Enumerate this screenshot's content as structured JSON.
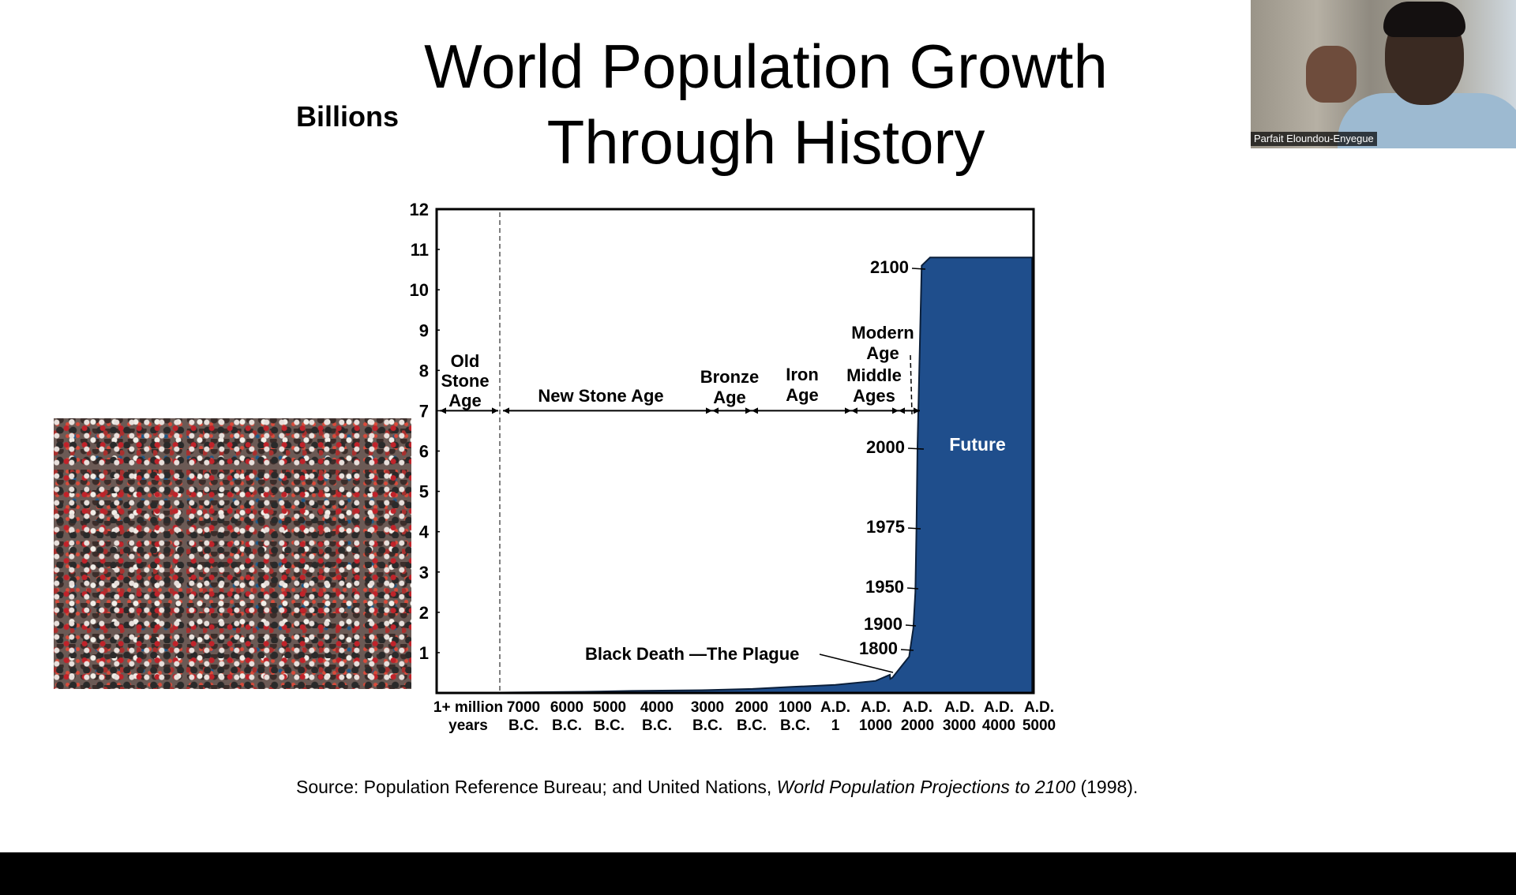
{
  "slide": {
    "title_line1": "World Population Growth",
    "title_line2": "Through History",
    "units_label": "Billions",
    "source_prefix": "Source: Population Reference Bureau; and United Nations, ",
    "source_title": "World Population Projections to 2100",
    "source_suffix": " (1998)."
  },
  "video_tile": {
    "participant_name": "Parfait Eloundou-Enyegue"
  },
  "chart_data": {
    "type": "area",
    "title": "World Population Growth Through History",
    "ylabel": "Billions",
    "ylim": [
      0,
      12
    ],
    "y_ticks": [
      1,
      2,
      3,
      4,
      5,
      6,
      7,
      8,
      9,
      10,
      11,
      12
    ],
    "x_categories": [
      [
        "1+ million",
        "years"
      ],
      [
        "7000",
        "B.C."
      ],
      [
        "6000",
        "B.C."
      ],
      [
        "5000",
        "B.C."
      ],
      [
        "4000",
        "B.C."
      ],
      [
        "3000",
        "B.C."
      ],
      [
        "2000",
        "B.C."
      ],
      [
        "1000",
        "B.C."
      ],
      [
        "A.D.",
        "1"
      ],
      [
        "A.D.",
        "1000"
      ],
      [
        "A.D.",
        "2000"
      ],
      [
        "A.D.",
        "3000"
      ],
      [
        "A.D.",
        "4000"
      ],
      [
        "A.D.",
        "5000"
      ]
    ],
    "series": [
      {
        "x": [
          -8200,
          -7000,
          -6000,
          -5000,
          -4000,
          -3000,
          -2000,
          -1000,
          0,
          1000,
          1340,
          1350,
          1400,
          1800,
          1900,
          1950,
          1975,
          2000,
          2100,
          2300,
          3000,
          4000,
          5000
        ],
        "values": [
          0.005,
          0.01,
          0.02,
          0.03,
          0.05,
          0.07,
          0.1,
          0.15,
          0.2,
          0.3,
          0.45,
          0.35,
          0.38,
          0.9,
          1.6,
          2.5,
          4.1,
          6.1,
          10.6,
          10.8,
          10.8,
          10.8,
          10.8
        ]
      }
    ],
    "future_label": "Future",
    "year_markers": [
      {
        "label": "1800",
        "value": 0.9
      },
      {
        "label": "1900",
        "value": 1.6
      },
      {
        "label": "1950",
        "value": 2.5
      },
      {
        "label": "1975",
        "value": 4.1
      },
      {
        "label": "2000",
        "value": 6.1
      },
      {
        "label": "2100",
        "value": 10.6
      }
    ],
    "annotation": "Black Death —The Plague",
    "eras": [
      {
        "name": [
          "Old",
          "Stone",
          "Age"
        ]
      },
      {
        "name": [
          "New Stone Age"
        ]
      },
      {
        "name": [
          "Bronze",
          "Age"
        ]
      },
      {
        "name": [
          "Iron",
          "Age"
        ]
      },
      {
        "name": [
          "Middle",
          "Ages"
        ]
      },
      {
        "name": [
          "Modern",
          "Age"
        ]
      }
    ],
    "colors": {
      "fill": "#1f4e8c",
      "axis": "#000000"
    }
  }
}
